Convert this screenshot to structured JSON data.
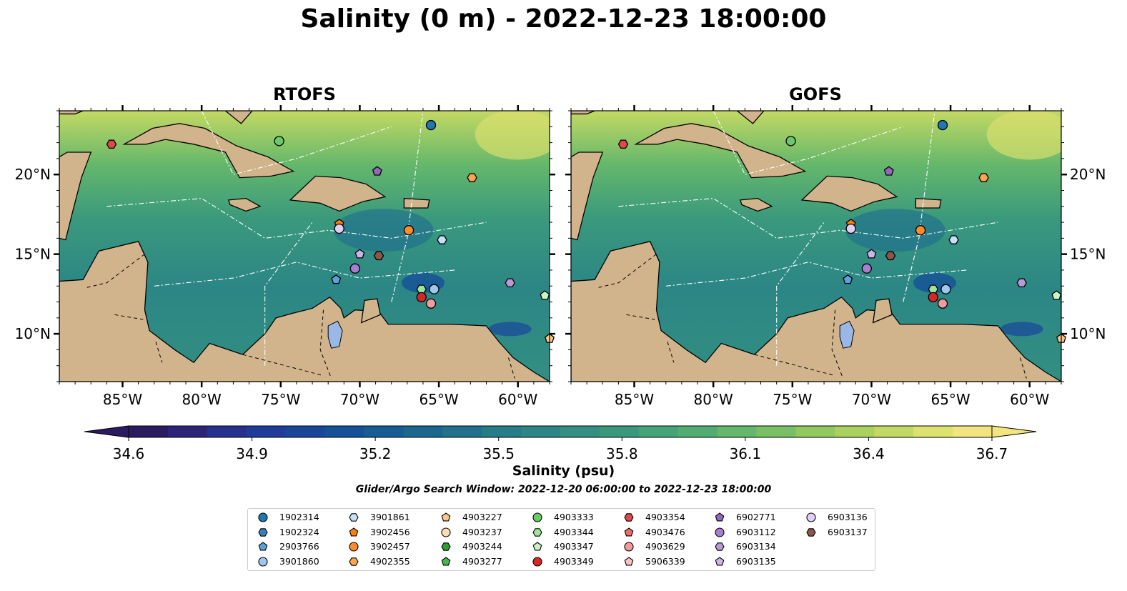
{
  "title": "Salinity (0 m) - 2022-12-23 18:00:00",
  "panels": [
    {
      "title": "RTOFS"
    },
    {
      "title": "GOFS"
    }
  ],
  "colorbar": {
    "label": "Salinity (psu)",
    "ticks": [
      "34.6",
      "34.9",
      "35.2",
      "35.5",
      "35.8",
      "36.1",
      "36.4",
      "36.7"
    ],
    "colors": [
      "#2b1a5f",
      "#2c2479",
      "#28308f",
      "#1f3c9a",
      "#18469b",
      "#155099",
      "#175c95",
      "#1b6790",
      "#20728c",
      "#267c88",
      "#2c8685",
      "#328f81",
      "#3a997d",
      "#45a378",
      "#52ad72",
      "#64b76b",
      "#79c064",
      "#91c95f",
      "#aad15e",
      "#c4d963",
      "#dde16d",
      "#f2e47e"
    ]
  },
  "search_window": "Glider/Argo Search Window: 2022-12-20 06:00:00 to 2022-12-23 18:00:00",
  "chart_data": {
    "type": "map",
    "variable": "Salinity (psu)",
    "depth": "0 m",
    "valid_time": "2022-12-23 18:00:00",
    "colorbar_range": [
      34.6,
      36.7
    ],
    "lon_range": [
      -89,
      -58
    ],
    "lat_range": [
      7,
      24
    ],
    "lon_ticks": [
      "85°W",
      "80°W",
      "75°W",
      "70°W",
      "65°W",
      "60°W"
    ],
    "lat_ticks": [
      "10°N",
      "15°N",
      "20°N"
    ],
    "lon_tick_values": [
      -85,
      -80,
      -75,
      -70,
      -65,
      -60
    ],
    "lat_tick_values": [
      10,
      15,
      20
    ],
    "series": [
      {
        "name": "RTOFS"
      },
      {
        "name": "GOFS"
      }
    ],
    "platforms": [
      {
        "id": "1902314",
        "marker": "circle",
        "color": "#1f77b4",
        "lon": -65.5,
        "lat": 23.1
      },
      {
        "id": "1902324",
        "marker": "hexagon",
        "color": "#3b7dc0",
        "lon": null,
        "lat": null
      },
      {
        "id": "2903766",
        "marker": "pentagon",
        "color": "#5aa2dc",
        "lon": -71.5,
        "lat": 13.4
      },
      {
        "id": "3901860",
        "marker": "circle",
        "color": "#9fc7ee",
        "lon": -65.3,
        "lat": 12.8
      },
      {
        "id": "3901861",
        "marker": "hexagon",
        "color": "#c6e1f7",
        "lon": -64.8,
        "lat": 15.9
      },
      {
        "id": "3902456",
        "marker": "pentagon",
        "color": "#ff7f0e",
        "lon": -71.3,
        "lat": 16.9
      },
      {
        "id": "3902457",
        "marker": "circle",
        "color": "#ff8c2a",
        "lon": -66.9,
        "lat": 16.5
      },
      {
        "id": "4902355",
        "marker": "hexagon",
        "color": "#ffa54f",
        "lon": -62.9,
        "lat": 19.8
      },
      {
        "id": "4903227",
        "marker": "pentagon",
        "color": "#ffc68a",
        "lon": -58.0,
        "lat": 9.7
      },
      {
        "id": "4903237",
        "marker": "circle",
        "color": "#ffdcb5",
        "lon": null,
        "lat": null
      },
      {
        "id": "4903244",
        "marker": "hexagon",
        "color": "#2ca02c",
        "lon": null,
        "lat": null
      },
      {
        "id": "4903277",
        "marker": "pentagon",
        "color": "#48b84a",
        "lon": null,
        "lat": null
      },
      {
        "id": "4903333",
        "marker": "circle",
        "color": "#6cc96a",
        "lon": -75.1,
        "lat": 22.1
      },
      {
        "id": "4903344",
        "marker": "hexagon",
        "color": "#9ee49b",
        "lon": -66.1,
        "lat": 12.8
      },
      {
        "id": "4903347",
        "marker": "pentagon",
        "color": "#c8f5c5",
        "lon": -58.3,
        "lat": 12.4
      },
      {
        "id": "4903349",
        "marker": "circle",
        "color": "#d62728",
        "lon": -66.1,
        "lat": 12.3
      },
      {
        "id": "4903354",
        "marker": "hexagon",
        "color": "#e0474a",
        "lon": -85.7,
        "lat": 21.9
      },
      {
        "id": "4903476",
        "marker": "pentagon",
        "color": "#ee6b6b",
        "lon": null,
        "lat": null
      },
      {
        "id": "4903629",
        "marker": "circle",
        "color": "#f39a9a",
        "lon": -65.5,
        "lat": 11.9
      },
      {
        "id": "5906339",
        "marker": "pentagon",
        "color": "#f9c3c3",
        "lon": null,
        "lat": null
      },
      {
        "id": "6902771",
        "marker": "pentagon",
        "color": "#9467bd",
        "lon": -68.9,
        "lat": 20.2
      },
      {
        "id": "6903112",
        "marker": "circle",
        "color": "#a680cc",
        "lon": -70.3,
        "lat": 14.1
      },
      {
        "id": "6903134",
        "marker": "hexagon",
        "color": "#b89ad8",
        "lon": -60.5,
        "lat": 13.2
      },
      {
        "id": "6903135",
        "marker": "pentagon",
        "color": "#cdb5e6",
        "lon": -70.0,
        "lat": 15.0
      },
      {
        "id": "6903136",
        "marker": "circle",
        "color": "#e3cff3",
        "lon": -71.3,
        "lat": 16.6
      },
      {
        "id": "6903137",
        "marker": "hexagon",
        "color": "#8c564b",
        "lon": -68.8,
        "lat": 14.9
      }
    ]
  }
}
